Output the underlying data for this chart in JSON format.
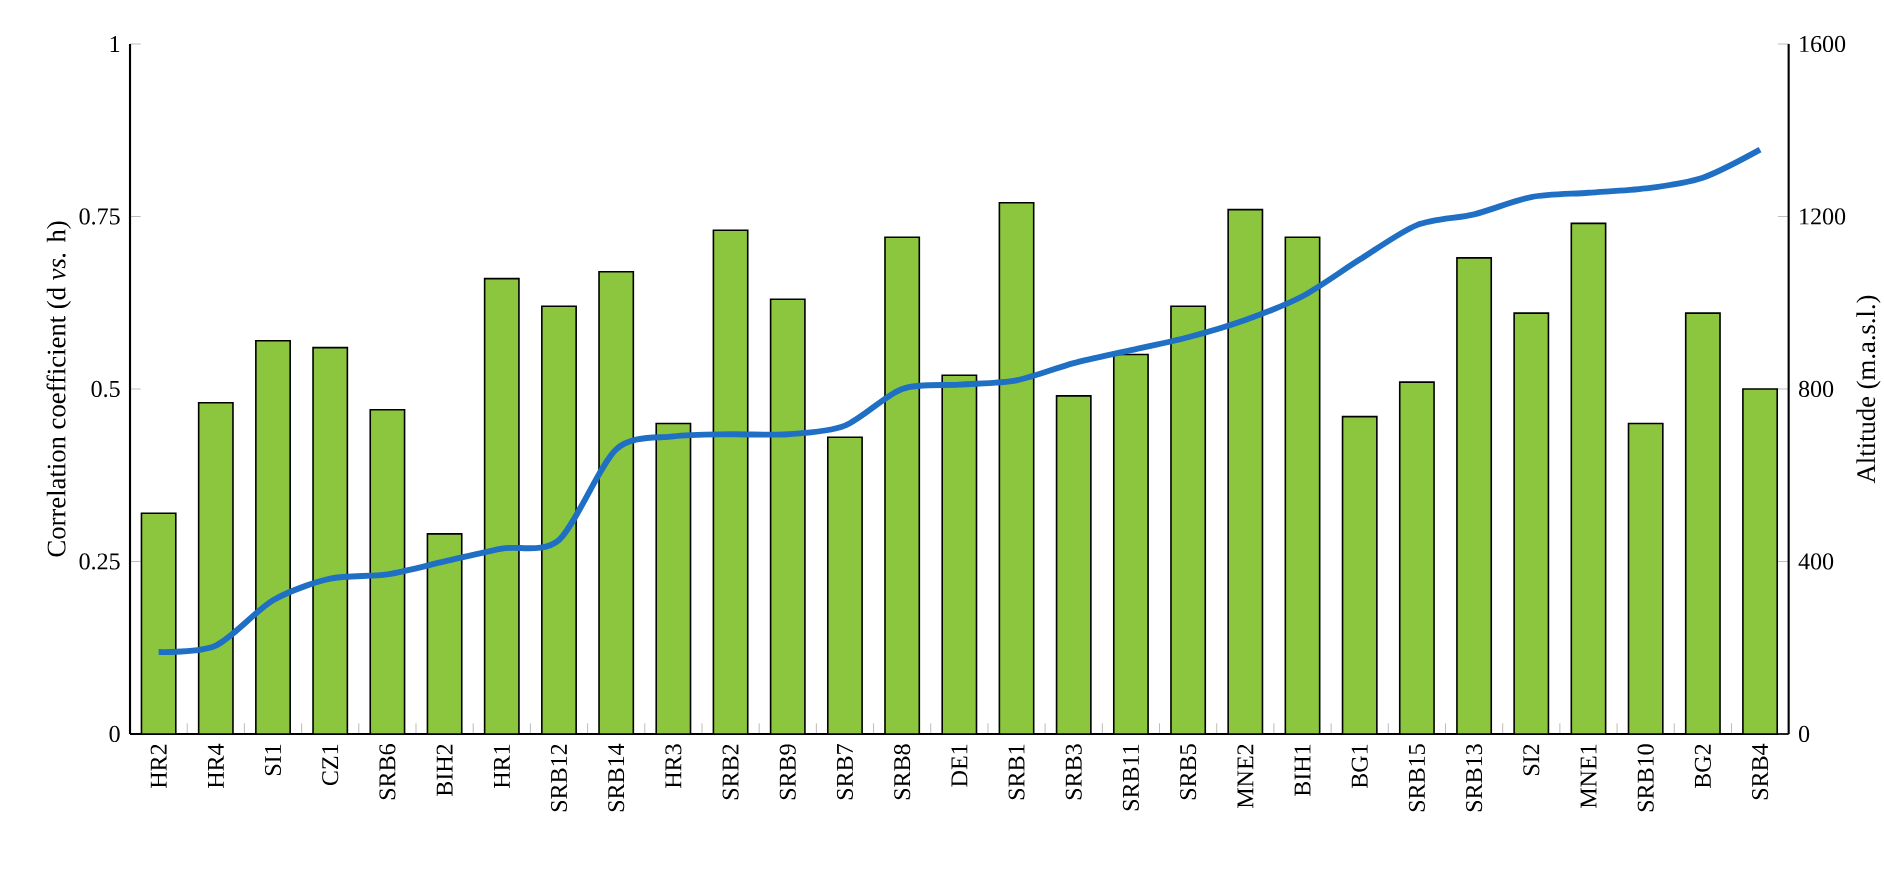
{
  "chart_data": {
    "type": "bar",
    "ylabel": "Correlation coefficient (d *vs.* h)",
    "y2label": "Altitude (m.a.s.l.)",
    "categories": [
      "HR2",
      "HR4",
      "SI1",
      "CZ1",
      "SRB6",
      "BIH2",
      "HR1",
      "SRB12",
      "SRB14",
      "HR3",
      "SRB2",
      "SRB9",
      "SRB7",
      "SRB8",
      "DE1",
      "SRB1",
      "SRB3",
      "SRB11",
      "SRB5",
      "MNE2",
      "BIH1",
      "BG1",
      "SRB15",
      "SRB13",
      "SI2",
      "MNE1",
      "SRB10",
      "BG2",
      "SRB4"
    ],
    "series": [
      {
        "color": "#8cc63e",
        "values": [
          0.32,
          0.48,
          0.57,
          0.56,
          0.47,
          0.29,
          0.66,
          0.62,
          0.67,
          0.45,
          0.73,
          0.63,
          0.43,
          0.72,
          0.52,
          0.77,
          0.49,
          0.55,
          0.62,
          0.76,
          0.72,
          0.46,
          0.51,
          0.69,
          0.61,
          0.74,
          0.45,
          0.61,
          0.5
        ]
      },
      {
        "type": "line",
        "axis": "y2",
        "color": "#1f6fc4",
        "values": [
          190,
          205,
          310,
          360,
          370,
          400,
          430,
          450,
          660,
          690,
          695,
          695,
          715,
          800,
          810,
          820,
          860,
          890,
          920,
          960,
          1015,
          1100,
          1180,
          1205,
          1245,
          1255,
          1265,
          1290,
          1355
        ]
      }
    ],
    "ylim": [
      0,
      1
    ],
    "yticks": [
      0,
      0.25,
      0.5,
      0.75,
      1
    ],
    "y2lim": [
      0,
      1600
    ],
    "y2ticks": [
      0,
      400,
      800,
      1200,
      1600
    ]
  }
}
